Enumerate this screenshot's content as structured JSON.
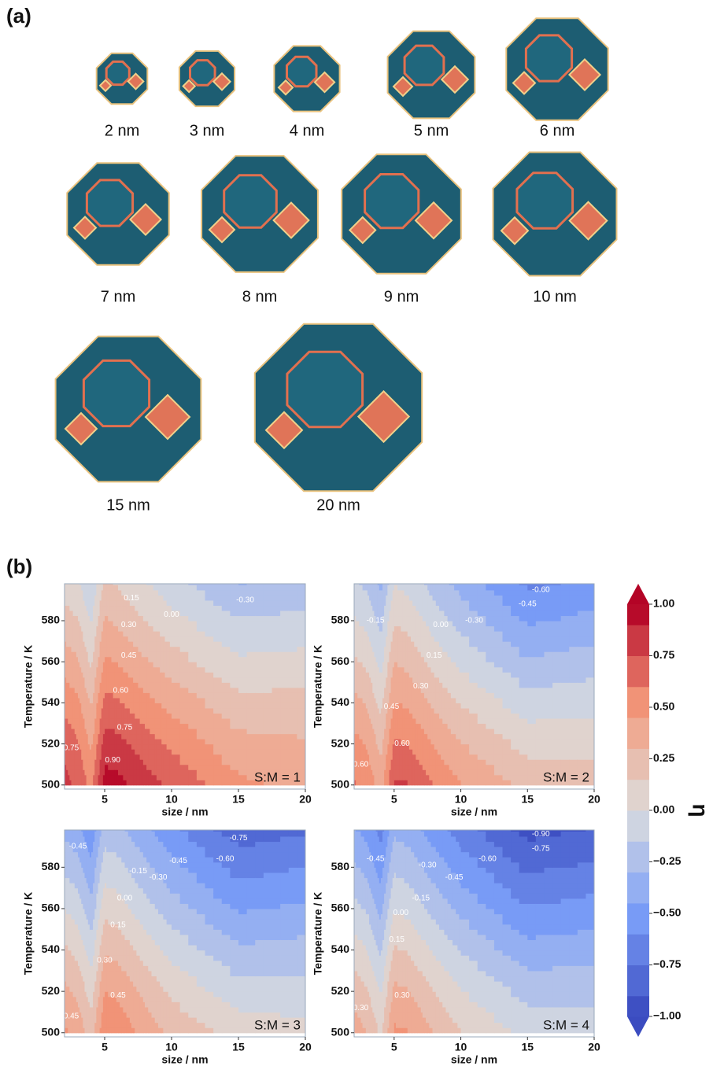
{
  "panel_a": {
    "label": "(a)",
    "particles": [
      {
        "label": "2 nm"
      },
      {
        "label": "3 nm"
      },
      {
        "label": "4 nm"
      },
      {
        "label": "5 nm"
      },
      {
        "label": "6 nm"
      },
      {
        "label": "7 nm"
      },
      {
        "label": "8 nm"
      },
      {
        "label": "9 nm"
      },
      {
        "label": "10 nm"
      },
      {
        "label": "15 nm"
      },
      {
        "label": "20 nm"
      }
    ]
  },
  "panel_b": {
    "label": "(b)"
  },
  "chart_data": [
    {
      "type": "contour",
      "annotation": "S:M = 1",
      "xlabel": "size / nm",
      "ylabel": "Temperature / K",
      "colormap": "coolwarm",
      "x": [
        2,
        3,
        4,
        5,
        6,
        7,
        8,
        9,
        10,
        15,
        20
      ],
      "y": [
        500,
        520,
        540,
        560,
        580,
        600
      ],
      "z": [
        [
          0.8,
          0.72,
          0.55,
          0.97,
          0.95,
          0.88,
          0.82,
          0.77,
          0.72,
          0.48,
          0.42
        ],
        [
          0.7,
          0.62,
          0.42,
          0.82,
          0.8,
          0.74,
          0.68,
          0.62,
          0.57,
          0.35,
          0.32
        ],
        [
          0.55,
          0.48,
          0.28,
          0.65,
          0.62,
          0.56,
          0.5,
          0.45,
          0.4,
          0.2,
          0.2
        ],
        [
          0.38,
          0.32,
          0.12,
          0.48,
          0.44,
          0.38,
          0.32,
          0.27,
          0.22,
          0.03,
          0.05
        ],
        [
          0.22,
          0.16,
          -0.02,
          0.32,
          0.27,
          0.21,
          0.15,
          0.1,
          0.05,
          -0.14,
          -0.1
        ],
        [
          0.06,
          0.0,
          -0.15,
          0.18,
          0.12,
          0.06,
          0.0,
          -0.05,
          -0.1,
          -0.32,
          -0.27
        ]
      ],
      "xlim": [
        2,
        20
      ],
      "ylim": [
        498,
        598
      ],
      "xticks": [
        5,
        10,
        15,
        20
      ],
      "yticks": [
        500,
        520,
        540,
        560,
        580
      ],
      "contour_labels": [
        {
          "value": 0.9,
          "label": "0.90",
          "x": 5.6,
          "y": 512
        },
        {
          "value": 0.75,
          "label": "0.75",
          "x": 6.5,
          "y": 528
        },
        {
          "value": 0.6,
          "label": "0.60",
          "x": 6.2,
          "y": 546
        },
        {
          "value": 0.45,
          "label": "0.45",
          "x": 6.8,
          "y": 563
        },
        {
          "value": 0.3,
          "label": "0.30",
          "x": 6.8,
          "y": 578
        },
        {
          "value": 0.15,
          "label": "0.15",
          "x": 7,
          "y": 591
        },
        {
          "value": 0,
          "label": "0.00",
          "x": 10,
          "y": 583
        },
        {
          "value": -0.3,
          "label": "-0.30",
          "x": 15.5,
          "y": 590
        },
        {
          "value": 0.75,
          "label": "0.75",
          "x": 2.5,
          "y": 518
        }
      ]
    },
    {
      "type": "contour",
      "annotation": "S:M = 2",
      "xlabel": "size / nm",
      "ylabel": "Temperature / K",
      "colormap": "coolwarm",
      "x": [
        2,
        3,
        4,
        5,
        6,
        7,
        8,
        9,
        10,
        15,
        20
      ],
      "y": [
        500,
        520,
        540,
        560,
        580,
        600
      ],
      "z": [
        [
          0.62,
          0.55,
          0.38,
          0.78,
          0.76,
          0.68,
          0.6,
          0.52,
          0.46,
          0.25,
          0.22
        ],
        [
          0.5,
          0.43,
          0.25,
          0.62,
          0.6,
          0.52,
          0.44,
          0.37,
          0.31,
          0.1,
          0.1
        ],
        [
          0.35,
          0.28,
          0.1,
          0.46,
          0.43,
          0.35,
          0.27,
          0.2,
          0.14,
          -0.08,
          -0.05
        ],
        [
          0.18,
          0.11,
          -0.06,
          0.3,
          0.26,
          0.18,
          0.1,
          0.03,
          -0.04,
          -0.28,
          -0.22
        ],
        [
          0.02,
          -0.05,
          -0.2,
          0.14,
          0.1,
          0.02,
          -0.07,
          -0.14,
          -0.2,
          -0.47,
          -0.4
        ],
        [
          -0.14,
          -0.2,
          -0.35,
          -0.02,
          -0.06,
          -0.14,
          -0.23,
          -0.3,
          -0.36,
          -0.65,
          -0.58
        ]
      ],
      "xlim": [
        2,
        20
      ],
      "ylim": [
        498,
        598
      ],
      "xticks": [
        5,
        10,
        15,
        20
      ],
      "yticks": [
        500,
        520,
        540,
        560,
        580
      ],
      "contour_labels": [
        {
          "value": 0.6,
          "label": "0.60",
          "x": 5.6,
          "y": 520
        },
        {
          "value": 0.45,
          "label": "0.45",
          "x": 4.8,
          "y": 538
        },
        {
          "value": 0.3,
          "label": "0.30",
          "x": 7,
          "y": 548
        },
        {
          "value": 0.15,
          "label": "0.15",
          "x": 8,
          "y": 563
        },
        {
          "value": 0,
          "label": "0.00",
          "x": 8.5,
          "y": 578
        },
        {
          "value": -0.15,
          "label": "-0.15",
          "x": 3.6,
          "y": 580
        },
        {
          "value": -0.3,
          "label": "-0.30",
          "x": 11,
          "y": 580
        },
        {
          "value": -0.45,
          "label": "-0.45",
          "x": 15,
          "y": 588
        },
        {
          "value": -0.6,
          "label": "-0.60",
          "x": 16,
          "y": 595
        },
        {
          "value": 0.6,
          "label": "0.60",
          "x": 2.5,
          "y": 510
        }
      ]
    },
    {
      "type": "contour",
      "annotation": "S:M = 3",
      "xlabel": "size / nm",
      "ylabel": "Temperature / K",
      "colormap": "coolwarm",
      "x": [
        2,
        3,
        4,
        5,
        6,
        7,
        8,
        9,
        10,
        15,
        20
      ],
      "y": [
        500,
        520,
        540,
        560,
        580,
        600
      ],
      "z": [
        [
          0.48,
          0.4,
          0.22,
          0.58,
          0.56,
          0.48,
          0.4,
          0.33,
          0.27,
          0.08,
          0.05
        ],
        [
          0.34,
          0.26,
          0.08,
          0.45,
          0.42,
          0.34,
          0.26,
          0.19,
          0.12,
          -0.08,
          -0.08
        ],
        [
          0.18,
          0.1,
          -0.08,
          0.28,
          0.25,
          0.17,
          0.09,
          0.02,
          -0.05,
          -0.27,
          -0.24
        ],
        [
          0.0,
          -0.07,
          -0.25,
          0.1,
          0.07,
          -0.01,
          -0.09,
          -0.16,
          -0.23,
          -0.47,
          -0.42
        ],
        [
          -0.18,
          -0.25,
          -0.42,
          -0.07,
          -0.1,
          -0.18,
          -0.26,
          -0.33,
          -0.4,
          -0.66,
          -0.6
        ],
        [
          -0.35,
          -0.42,
          -0.58,
          -0.24,
          -0.27,
          -0.35,
          -0.43,
          -0.5,
          -0.57,
          -0.85,
          -0.78
        ]
      ],
      "xlim": [
        2,
        20
      ],
      "ylim": [
        498,
        598
      ],
      "xticks": [
        5,
        10,
        15,
        20
      ],
      "yticks": [
        500,
        520,
        540,
        560,
        580
      ],
      "contour_labels": [
        {
          "value": 0.45,
          "label": "0.45",
          "x": 6,
          "y": 518
        },
        {
          "value": 0.3,
          "label": "0.30",
          "x": 5,
          "y": 535
        },
        {
          "value": 0.15,
          "label": "0.15",
          "x": 6,
          "y": 552
        },
        {
          "value": 0,
          "label": "0.00",
          "x": 6.5,
          "y": 565
        },
        {
          "value": -0.15,
          "label": "-0.15",
          "x": 7.5,
          "y": 578
        },
        {
          "value": -0.3,
          "label": "-0.30",
          "x": 9,
          "y": 575
        },
        {
          "value": -0.45,
          "label": "-0.45",
          "x": 10.5,
          "y": 583
        },
        {
          "value": -0.6,
          "label": "-0.60",
          "x": 14,
          "y": 584
        },
        {
          "value": -0.75,
          "label": "-0.75",
          "x": 15,
          "y": 594
        },
        {
          "value": -0.45,
          "label": "-0.45",
          "x": 3,
          "y": 590
        },
        {
          "value": 0.45,
          "label": "0.45",
          "x": 2.5,
          "y": 508
        }
      ]
    },
    {
      "type": "contour",
      "annotation": "S:M = 4",
      "xlabel": "size / nm",
      "ylabel": "Temperature / K",
      "colormap": "coolwarm",
      "x": [
        2,
        3,
        4,
        5,
        6,
        7,
        8,
        9,
        10,
        15,
        20
      ],
      "y": [
        500,
        520,
        540,
        560,
        580,
        600
      ],
      "z": [
        [
          0.38,
          0.3,
          0.12,
          0.48,
          0.46,
          0.38,
          0.3,
          0.22,
          0.16,
          -0.04,
          -0.06
        ],
        [
          0.24,
          0.16,
          -0.02,
          0.34,
          0.31,
          0.23,
          0.15,
          0.08,
          0.01,
          -0.2,
          -0.2
        ],
        [
          0.08,
          0.0,
          -0.18,
          0.17,
          0.14,
          0.06,
          -0.02,
          -0.09,
          -0.16,
          -0.39,
          -0.36
        ],
        [
          -0.1,
          -0.17,
          -0.35,
          -0.01,
          -0.04,
          -0.12,
          -0.2,
          -0.27,
          -0.34,
          -0.59,
          -0.54
        ],
        [
          -0.28,
          -0.35,
          -0.52,
          -0.18,
          -0.21,
          -0.29,
          -0.37,
          -0.44,
          -0.51,
          -0.78,
          -0.72
        ],
        [
          -0.45,
          -0.52,
          -0.68,
          -0.35,
          -0.38,
          -0.46,
          -0.54,
          -0.61,
          -0.68,
          -0.97,
          -0.9
        ]
      ],
      "xlim": [
        2,
        20
      ],
      "ylim": [
        498,
        598
      ],
      "xticks": [
        5,
        10,
        15,
        20
      ],
      "yticks": [
        500,
        520,
        540,
        560,
        580
      ],
      "contour_labels": [
        {
          "value": 0.3,
          "label": "0.30",
          "x": 5.6,
          "y": 518
        },
        {
          "value": 0.15,
          "label": "0.15",
          "x": 5.2,
          "y": 545
        },
        {
          "value": 0,
          "label": "0.00",
          "x": 5.5,
          "y": 558
        },
        {
          "value": -0.15,
          "label": "-0.15",
          "x": 7,
          "y": 565
        },
        {
          "value": -0.3,
          "label": "-0.30",
          "x": 7.5,
          "y": 581
        },
        {
          "value": -0.45,
          "label": "-0.45",
          "x": 9.5,
          "y": 575
        },
        {
          "value": -0.6,
          "label": "-0.60",
          "x": 12,
          "y": 584
        },
        {
          "value": -0.75,
          "label": "-0.75",
          "x": 16,
          "y": 589
        },
        {
          "value": -0.9,
          "label": "-0.90",
          "x": 16,
          "y": 596
        },
        {
          "value": -0.45,
          "label": "-0.45",
          "x": 3.6,
          "y": 584
        },
        {
          "value": 0.3,
          "label": "0.30",
          "x": 2.5,
          "y": 512
        }
      ]
    },
    {
      "type": "colorbar",
      "label": "η",
      "colormap": "coolwarm",
      "lim": [
        -1,
        1
      ],
      "levels": [
        -1.05,
        -0.9,
        -0.75,
        -0.6,
        -0.45,
        -0.3,
        -0.15,
        0,
        0.15,
        0.3,
        0.45,
        0.6,
        0.75,
        0.9,
        1.05
      ],
      "ticks": [
        {
          "value": 1,
          "label": "1.00"
        },
        {
          "value": 0.75,
          "label": "0.75"
        },
        {
          "value": 0.5,
          "label": "0.50"
        },
        {
          "value": 0.25,
          "label": "0.25"
        },
        {
          "value": 0,
          "label": "0.00"
        },
        {
          "value": -0.25,
          "label": "−0.25"
        },
        {
          "value": -0.5,
          "label": "−0.50"
        },
        {
          "value": -0.75,
          "label": "−0.75"
        },
        {
          "value": -1,
          "label": "−1.00"
        }
      ]
    }
  ]
}
